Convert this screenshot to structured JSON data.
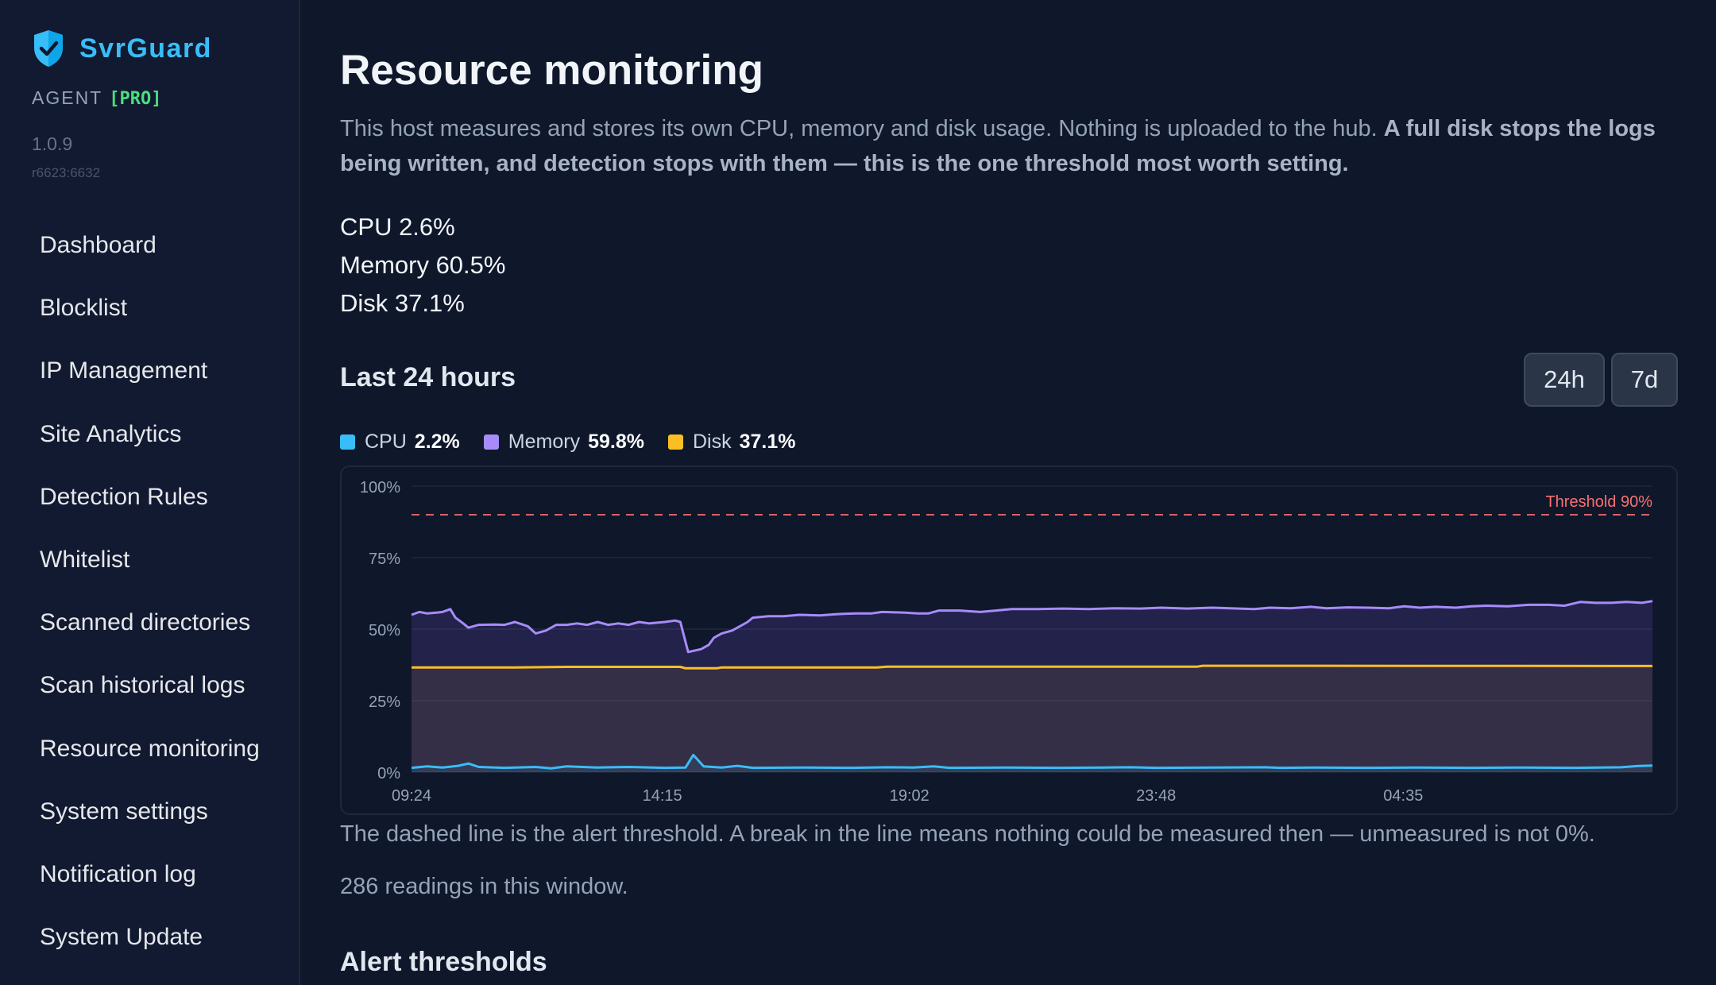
{
  "sidebar": {
    "brand": "SvrGuard",
    "agent_label": "AGENT",
    "agent_tier": "[PRO]",
    "version": "1.0.9",
    "revision": "r6623:6632",
    "items": [
      {
        "label": "Dashboard"
      },
      {
        "label": "Blocklist"
      },
      {
        "label": "IP Management"
      },
      {
        "label": "Site Analytics"
      },
      {
        "label": "Detection Rules"
      },
      {
        "label": "Whitelist"
      },
      {
        "label": "Scanned directories"
      },
      {
        "label": "Scan historical logs"
      },
      {
        "label": "Resource monitoring"
      },
      {
        "label": "System settings"
      },
      {
        "label": "Notification log"
      },
      {
        "label": "System Update"
      }
    ]
  },
  "page": {
    "title": "Resource monitoring",
    "intro": "This host measures and stores its own CPU, memory and disk usage. Nothing is uploaded to the hub.",
    "intro_bold": "A full disk stops the logs being written, and detection stops with them — this is the one threshold most worth setting.",
    "stats": {
      "cpu": "CPU 2.6%",
      "memory": "Memory 60.5%",
      "disk": "Disk 37.1%"
    },
    "section_title": "Last 24 hours",
    "range_buttons": {
      "h24": "24h",
      "d7": "7d"
    },
    "legend": [
      {
        "name": "CPU",
        "value": "2.2%",
        "color": "#38bdf8"
      },
      {
        "name": "Memory",
        "value": "59.8%",
        "color": "#a78bfa"
      },
      {
        "name": "Disk",
        "value": "37.1%",
        "color": "#fbbf24"
      }
    ],
    "chart_note": "The dashed line is the alert threshold. A break in the line means nothing could be measured then — unmeasured is not 0%.",
    "readings": "286 readings in this window.",
    "section2_title": "Alert thresholds"
  },
  "colors": {
    "background": "#0f172a",
    "sidebar": "#111a30",
    "accent": "#38bdf8",
    "cpu": "#38bdf8",
    "memory": "#a78bfa",
    "disk": "#fbbf24",
    "threshold": "#f87171",
    "pro": "#4ade80"
  },
  "icons": {
    "brand": "shield-check-icon"
  },
  "chart_data": {
    "type": "area",
    "ylim": [
      0,
      100
    ],
    "y_ticks": [
      "100%",
      "75%",
      "50%",
      "25%",
      "0%"
    ],
    "y_tick_values": [
      100,
      75,
      50,
      25,
      0
    ],
    "x_tick_labels": [
      "09:24",
      "14:15",
      "19:02",
      "23:48",
      "04:35"
    ],
    "x_tick_hours": [
      0,
      4.85,
      9.63,
      14.4,
      19.18
    ],
    "x_range_hours": [
      0,
      24
    ],
    "threshold": {
      "label": "Threshold 90%",
      "value": 90
    },
    "grid": true,
    "legend_position": "top-left",
    "series": [
      {
        "name": "CPU",
        "points": [
          [
            0,
            1.5
          ],
          [
            0.3,
            2
          ],
          [
            0.6,
            1.6
          ],
          [
            0.9,
            2.2
          ],
          [
            1.1,
            3
          ],
          [
            1.3,
            1.8
          ],
          [
            1.8,
            1.5
          ],
          [
            2.4,
            1.8
          ],
          [
            2.7,
            1.3
          ],
          [
            3.0,
            2
          ],
          [
            3.6,
            1.6
          ],
          [
            4.2,
            1.8
          ],
          [
            4.9,
            1.5
          ],
          [
            5.3,
            1.6
          ],
          [
            5.45,
            6
          ],
          [
            5.65,
            2
          ],
          [
            6.0,
            1.6
          ],
          [
            6.3,
            2.2
          ],
          [
            6.6,
            1.5
          ],
          [
            7.5,
            1.6
          ],
          [
            8.5,
            1.5
          ],
          [
            9.2,
            1.7
          ],
          [
            9.7,
            1.6
          ],
          [
            10.1,
            2
          ],
          [
            10.4,
            1.5
          ],
          [
            11.5,
            1.6
          ],
          [
            12.5,
            1.5
          ],
          [
            13.4,
            1.6
          ],
          [
            13.9,
            1.7
          ],
          [
            14.4,
            1.5
          ],
          [
            15.5,
            1.6
          ],
          [
            16.5,
            1.7
          ],
          [
            16.8,
            1.5
          ],
          [
            17.5,
            1.6
          ],
          [
            18.5,
            1.5
          ],
          [
            19.5,
            1.6
          ],
          [
            20.5,
            1.5
          ],
          [
            21.5,
            1.6
          ],
          [
            22.5,
            1.5
          ],
          [
            23.4,
            1.7
          ],
          [
            23.7,
            2.1
          ],
          [
            24.0,
            2.3
          ]
        ]
      },
      {
        "name": "Memory",
        "points": [
          [
            0,
            55
          ],
          [
            0.15,
            56
          ],
          [
            0.3,
            55.5
          ],
          [
            0.5,
            55.8
          ],
          [
            0.6,
            56
          ],
          [
            0.75,
            57
          ],
          [
            0.85,
            54
          ],
          [
            1.0,
            52
          ],
          [
            1.1,
            50.5
          ],
          [
            1.3,
            51.5
          ],
          [
            1.6,
            51.6
          ],
          [
            1.8,
            51.5
          ],
          [
            2.0,
            52.5
          ],
          [
            2.25,
            51
          ],
          [
            2.4,
            48.5
          ],
          [
            2.6,
            49.5
          ],
          [
            2.8,
            51.5
          ],
          [
            3.0,
            51.5
          ],
          [
            3.2,
            52
          ],
          [
            3.4,
            51.5
          ],
          [
            3.6,
            52.5
          ],
          [
            3.8,
            51.5
          ],
          [
            4.0,
            52
          ],
          [
            4.2,
            51.5
          ],
          [
            4.4,
            52.5
          ],
          [
            4.6,
            52
          ],
          [
            4.9,
            52.5
          ],
          [
            5.1,
            53
          ],
          [
            5.2,
            52.5
          ],
          [
            5.35,
            42
          ],
          [
            5.6,
            43
          ],
          [
            5.75,
            44.5
          ],
          [
            5.85,
            47
          ],
          [
            6.0,
            48.5
          ],
          [
            6.2,
            49.5
          ],
          [
            6.35,
            51
          ],
          [
            6.5,
            52.5
          ],
          [
            6.6,
            54
          ],
          [
            6.9,
            54.5
          ],
          [
            7.2,
            54.5
          ],
          [
            7.5,
            55
          ],
          [
            7.9,
            54.8
          ],
          [
            8.2,
            55.2
          ],
          [
            8.4,
            55.4
          ],
          [
            8.6,
            55.5
          ],
          [
            8.9,
            55.5
          ],
          [
            9.1,
            56
          ],
          [
            9.5,
            55.8
          ],
          [
            9.8,
            55.5
          ],
          [
            10.0,
            55.5
          ],
          [
            10.2,
            56.5
          ],
          [
            10.6,
            56.5
          ],
          [
            11.0,
            56
          ],
          [
            11.3,
            56.5
          ],
          [
            11.6,
            57
          ],
          [
            12.1,
            57
          ],
          [
            12.6,
            57.2
          ],
          [
            13.1,
            57
          ],
          [
            13.6,
            57.3
          ],
          [
            14.1,
            57.2
          ],
          [
            14.5,
            57.5
          ],
          [
            15.0,
            57.2
          ],
          [
            15.5,
            57.5
          ],
          [
            16.0,
            57.2
          ],
          [
            16.3,
            57
          ],
          [
            16.6,
            57.5
          ],
          [
            17.0,
            57.3
          ],
          [
            17.4,
            57.8
          ],
          [
            17.7,
            57.3
          ],
          [
            18.1,
            57.6
          ],
          [
            18.5,
            57.5
          ],
          [
            18.9,
            57.3
          ],
          [
            19.2,
            58
          ],
          [
            19.5,
            57.5
          ],
          [
            19.8,
            57.8
          ],
          [
            20.2,
            57.5
          ],
          [
            20.5,
            58
          ],
          [
            20.8,
            58.2
          ],
          [
            21.2,
            58
          ],
          [
            21.6,
            58.5
          ],
          [
            22.0,
            58.5
          ],
          [
            22.3,
            58.2
          ],
          [
            22.6,
            59.5
          ],
          [
            22.9,
            59.2
          ],
          [
            23.2,
            59.2
          ],
          [
            23.5,
            59.5
          ],
          [
            23.8,
            59.2
          ],
          [
            24.0,
            59.8
          ]
        ]
      },
      {
        "name": "Disk",
        "points": [
          [
            0,
            36.6
          ],
          [
            2.0,
            36.6
          ],
          [
            3.0,
            36.8
          ],
          [
            4.0,
            36.8
          ],
          [
            5.2,
            36.8
          ],
          [
            5.3,
            36.3
          ],
          [
            5.9,
            36.3
          ],
          [
            6.0,
            36.6
          ],
          [
            9.0,
            36.6
          ],
          [
            9.2,
            36.9
          ],
          [
            15.2,
            36.9
          ],
          [
            15.3,
            37.2
          ],
          [
            24.0,
            37.1
          ]
        ]
      }
    ]
  }
}
